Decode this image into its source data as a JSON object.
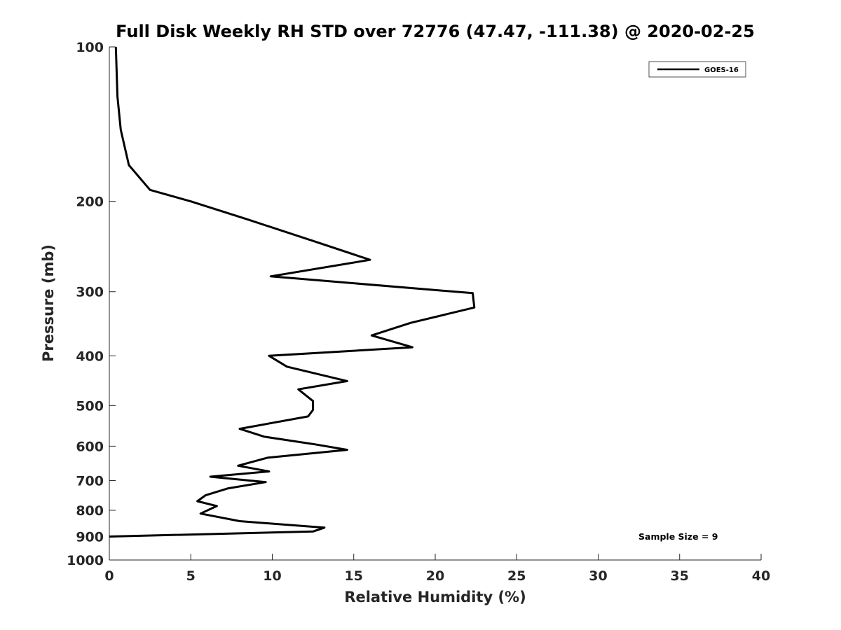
{
  "chart_data": {
    "type": "line",
    "title": "Full Disk Weekly RH STD over 72776 (47.47, -111.38) @ 2020-02-25",
    "xlabel": "Relative Humidity (%)",
    "ylabel": "Pressure (mb)",
    "xlim": [
      0,
      40
    ],
    "ylim": [
      100,
      1000
    ],
    "yscale": "log",
    "y_reversed": true,
    "xticks": [
      0,
      5,
      10,
      15,
      20,
      25,
      30,
      35,
      40
    ],
    "yticks": [
      100,
      200,
      300,
      400,
      500,
      600,
      700,
      800,
      900,
      1000
    ],
    "grid": false,
    "legend": "top-right",
    "series": [
      {
        "name": "GOES-16",
        "color": "#000000",
        "points": [
          [
            0.4,
            100
          ],
          [
            0.5,
            125
          ],
          [
            0.7,
            145
          ],
          [
            1.2,
            170
          ],
          [
            2.5,
            190
          ],
          [
            5.0,
            200
          ],
          [
            8.5,
            217
          ],
          [
            12.7,
            240
          ],
          [
            16.0,
            260
          ],
          [
            9.9,
            280
          ],
          [
            22.3,
            302
          ],
          [
            22.4,
            322
          ],
          [
            18.5,
            345
          ],
          [
            16.1,
            365
          ],
          [
            18.6,
            385
          ],
          [
            9.8,
            400
          ],
          [
            10.9,
            420
          ],
          [
            14.6,
            448
          ],
          [
            11.6,
            465
          ],
          [
            12.5,
            490
          ],
          [
            12.5,
            510
          ],
          [
            12.2,
            525
          ],
          [
            8.0,
            555
          ],
          [
            9.5,
            575
          ],
          [
            12.6,
            595
          ],
          [
            14.6,
            610
          ],
          [
            9.7,
            632
          ],
          [
            7.9,
            655
          ],
          [
            9.8,
            672
          ],
          [
            6.2,
            688
          ],
          [
            9.6,
            705
          ],
          [
            7.3,
            725
          ],
          [
            5.9,
            748
          ],
          [
            5.4,
            768
          ],
          [
            6.6,
            785
          ],
          [
            5.6,
            812
          ],
          [
            8.0,
            840
          ],
          [
            13.2,
            865
          ],
          [
            12.5,
            880
          ],
          [
            0.0,
            900
          ]
        ]
      }
    ],
    "annotations": [
      "Sample Size = 9"
    ]
  }
}
